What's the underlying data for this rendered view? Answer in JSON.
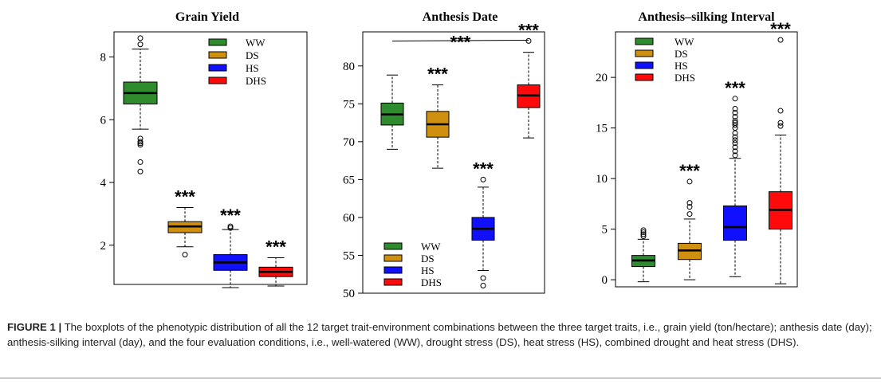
{
  "legend_labels": [
    "WW",
    "DS",
    "HS",
    "DHS"
  ],
  "colors": {
    "WW": "#2e8b2e",
    "DS": "#d0900f",
    "HS": "#1010ff",
    "DHS": "#ff0a0a"
  },
  "caption": {
    "label": "FIGURE 1 |",
    "text": "The boxplots of the phenotypic distribution of all the 12 target trait-environment combinations between the three target traits, i.e., grain yield (ton/hectare); anthesis date (day); anthesis-silking interval (day), and the four evaluation conditions, i.e., well-watered (WW), drought stress (DS), heat stress (HS), combined drought and heat stress (DHS)."
  },
  "chart_data": [
    {
      "type": "box",
      "title": "Grain Yield",
      "categories": [
        "WW",
        "DS",
        "HS",
        "DHS"
      ],
      "ylim": [
        0.75,
        8.8
      ],
      "yticks": [
        2,
        4,
        6,
        8
      ],
      "legend_position": "top-right",
      "boxes": [
        {
          "name": "WW",
          "whisker_low": 5.7,
          "q1": 6.5,
          "median": 6.85,
          "q3": 7.2,
          "whisker_high": 8.25,
          "outliers": [
            8.6,
            8.4,
            5.4,
            5.3,
            5.25,
            5.2,
            4.65,
            4.35
          ],
          "sig": ""
        },
        {
          "name": "DS",
          "whisker_low": 1.95,
          "q1": 2.4,
          "median": 2.6,
          "q3": 2.75,
          "whisker_high": 3.2,
          "outliers": [
            1.7
          ],
          "sig": "***"
        },
        {
          "name": "HS",
          "whisker_low": 0.65,
          "q1": 1.2,
          "median": 1.45,
          "q3": 1.7,
          "whisker_high": 2.5,
          "outliers": [
            2.55,
            2.6
          ],
          "sig": "***"
        },
        {
          "name": "DHS",
          "whisker_low": 0.7,
          "q1": 1.0,
          "median": 1.15,
          "q3": 1.3,
          "whisker_high": 1.6,
          "outliers": [],
          "sig": "***"
        }
      ]
    },
    {
      "type": "box",
      "title": "Anthesis Date",
      "categories": [
        "WW",
        "DS",
        "HS",
        "DHS"
      ],
      "ylim": [
        50,
        84.5
      ],
      "yticks": [
        50,
        55,
        60,
        65,
        70,
        75,
        80
      ],
      "legend_position": "bottom-left",
      "bracket": {
        "from": 0,
        "to": 3,
        "y": 83.5,
        "label": "***"
      },
      "boxes": [
        {
          "name": "WW",
          "whisker_low": 69,
          "q1": 72.2,
          "median": 73.6,
          "q3": 75.1,
          "whisker_high": 78.8,
          "outliers": [],
          "sig": ""
        },
        {
          "name": "DS",
          "whisker_low": 66.5,
          "q1": 70.6,
          "median": 72.3,
          "q3": 74,
          "whisker_high": 77.5,
          "outliers": [],
          "sig": "***"
        },
        {
          "name": "HS",
          "whisker_low": 53,
          "q1": 57,
          "median": 58.5,
          "q3": 60,
          "whisker_high": 64,
          "outliers": [
            65,
            52,
            51
          ],
          "sig": "***"
        },
        {
          "name": "DHS",
          "whisker_low": 70.5,
          "q1": 74.5,
          "median": 76.1,
          "q3": 77.5,
          "whisker_high": 81.8,
          "outliers": [
            83.3
          ],
          "sig": "***"
        }
      ]
    },
    {
      "type": "box",
      "title": "Anthesis–silking Interval",
      "categories": [
        "WW",
        "DS",
        "HS",
        "DHS"
      ],
      "ylim": [
        -0.7,
        24.5
      ],
      "yticks": [
        0,
        5,
        10,
        15,
        20
      ],
      "legend_position": "top-left",
      "boxes": [
        {
          "name": "WW",
          "whisker_low": -0.2,
          "q1": 1.3,
          "median": 1.9,
          "q3": 2.4,
          "whisker_high": 4.0,
          "outliers": [
            4.3,
            4.5,
            4.7,
            4.9
          ],
          "sig": ""
        },
        {
          "name": "DS",
          "whisker_low": 0,
          "q1": 2.0,
          "median": 2.9,
          "q3": 3.6,
          "whisker_high": 6.0,
          "outliers": [
            6.5,
            7.2,
            7.6,
            9.7
          ],
          "sig": "***"
        },
        {
          "name": "HS",
          "whisker_low": 0.3,
          "q1": 3.9,
          "median": 5.2,
          "q3": 7.3,
          "whisker_high": 12.0,
          "outliers": [
            12.3,
            12.7,
            13.1,
            13.5,
            13.8,
            14.1,
            14.5,
            15.0,
            15.3,
            15.5,
            15.7,
            16.1,
            16.5,
            16.9,
            17.9
          ],
          "sig": "***"
        },
        {
          "name": "DHS",
          "whisker_low": -0.4,
          "q1": 5.0,
          "median": 6.9,
          "q3": 8.7,
          "whisker_high": 14.3,
          "outliers": [
            15.2,
            15.5,
            16.7,
            23.7
          ],
          "sig": "***"
        }
      ]
    }
  ]
}
